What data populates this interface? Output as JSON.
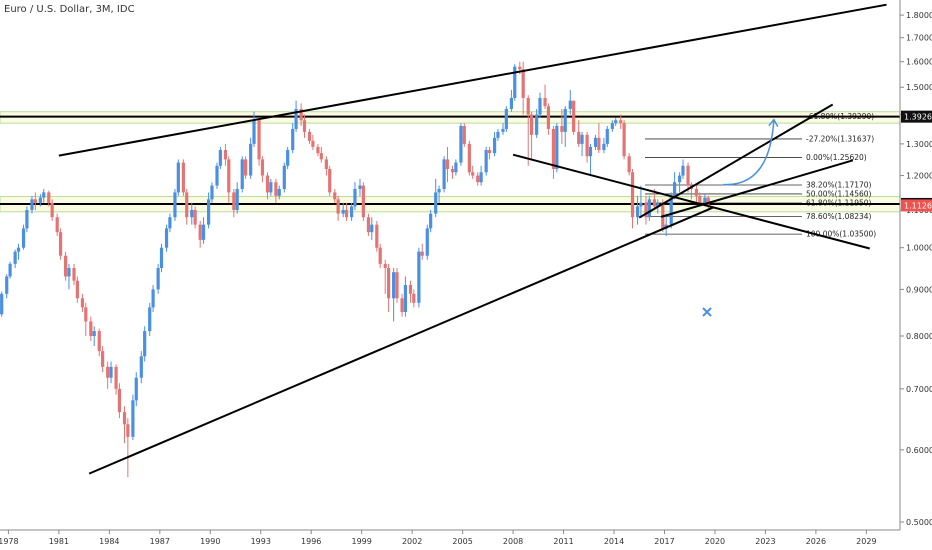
{
  "header": {
    "title": "Euro / U.S. Dollar, 3M, IDC"
  },
  "colors": {
    "up": "#4a90e2",
    "down": "#e57373",
    "zone_fill": "#fbfbe3",
    "zone_edge": "#b9dd9d",
    "key_level": "#000000",
    "arrow": "#4a90e2"
  },
  "chart_data": {
    "type": "candlestick",
    "symbol": "Euro / U.S. Dollar",
    "timeframe": "3M",
    "source": "IDC",
    "x_range": [
      1977.5,
      2031
    ],
    "y_range": [
      0.49,
      1.87
    ],
    "y_scale": "log",
    "x_ticks": [
      "1978",
      "1981",
      "1984",
      "1987",
      "1990",
      "1993",
      "1996",
      "1999",
      "2002",
      "2005",
      "2008",
      "2011",
      "2014",
      "2017",
      "2020",
      "2023",
      "2026",
      "2029"
    ],
    "y_ticks": [
      "1.80000",
      "1.70000",
      "1.60000",
      "1.50000",
      "1.40000",
      "1.30000",
      "1.20000",
      "1.10000",
      "1.00000",
      "0.90000",
      "0.80000",
      "0.70000",
      "0.60000",
      "0.50000"
    ],
    "price_tags": [
      {
        "label": "1.39260",
        "value": 1.3926,
        "style": "dark"
      },
      {
        "label": "1.11694",
        "value": 1.11694,
        "style": "dark"
      },
      {
        "label": "1.11269",
        "value": 1.11269,
        "style": "red"
      }
    ],
    "key_levels": [
      1.3926,
      1.11694
    ],
    "zones": [
      {
        "from": 1.37,
        "to": 1.41
      },
      {
        "from": 1.095,
        "to": 1.138
      }
    ],
    "fib_levels": [
      {
        "label": "-61.80%(1.39290)",
        "value": 1.3929
      },
      {
        "label": "-27.20%(1.31637)",
        "value": 1.31637
      },
      {
        "label": "0.00%(1.25620)",
        "value": 1.2562
      },
      {
        "label": "38.20%(1.17170)",
        "value": 1.1717
      },
      {
        "label": "50.00%(1.14560)",
        "value": 1.1456
      },
      {
        "label": "61.80%(1.11950)",
        "value": 1.1195
      },
      {
        "label": "78.60%(1.08234)",
        "value": 1.08234
      },
      {
        "label": "100.00%(1.03500)",
        "value": 1.035
      }
    ],
    "trendlines": [
      {
        "name": "channel-upper",
        "from": [
          1981.0,
          1.262
        ],
        "to": [
          2030.2,
          1.848
        ]
      },
      {
        "name": "channel-lower",
        "from": [
          1982.8,
          0.565
        ],
        "to": [
          2019.9,
          1.107
        ]
      },
      {
        "name": "wedge-upper",
        "from": [
          2015.5,
          1.079
        ],
        "to": [
          2027.0,
          1.436
        ]
      },
      {
        "name": "wedge-lower",
        "from": [
          2016.8,
          1.081
        ],
        "to": [
          2028.2,
          1.247
        ]
      },
      {
        "name": "downtrend",
        "from": [
          2008.0,
          1.265
        ],
        "to": [
          2029.2,
          0.998
        ]
      }
    ],
    "arrow": {
      "from": [
        2020.5,
        1.173
      ],
      "to": [
        2023.5,
        1.382
      ]
    },
    "candles": [
      [
        1977.6,
        0.845,
        0.89,
        0.84,
        0.895
      ],
      [
        1977.9,
        0.89,
        0.93,
        0.88,
        0.935
      ],
      [
        1978.1,
        0.93,
        0.96,
        0.925,
        0.965
      ],
      [
        1978.4,
        0.96,
        0.99,
        0.95,
        0.995
      ],
      [
        1978.6,
        0.99,
        1.0,
        0.97,
        1.01
      ],
      [
        1978.9,
        1.0,
        1.05,
        0.995,
        1.06
      ],
      [
        1979.1,
        1.05,
        1.1,
        1.04,
        1.11
      ],
      [
        1979.4,
        1.1,
        1.13,
        1.09,
        1.14
      ],
      [
        1979.6,
        1.13,
        1.12,
        1.1,
        1.15
      ],
      [
        1979.9,
        1.12,
        1.135,
        1.11,
        1.145
      ],
      [
        1980.1,
        1.135,
        1.15,
        1.12,
        1.16
      ],
      [
        1980.4,
        1.15,
        1.12,
        1.11,
        1.155
      ],
      [
        1980.6,
        1.12,
        1.08,
        1.07,
        1.13
      ],
      [
        1980.9,
        1.08,
        1.04,
        1.03,
        1.09
      ],
      [
        1981.1,
        1.04,
        0.98,
        0.97,
        1.05
      ],
      [
        1981.4,
        0.98,
        0.93,
        0.92,
        0.99
      ],
      [
        1981.6,
        0.93,
        0.95,
        0.9,
        0.96
      ],
      [
        1981.9,
        0.95,
        0.92,
        0.91,
        0.96
      ],
      [
        1982.1,
        0.92,
        0.88,
        0.87,
        0.93
      ],
      [
        1982.4,
        0.88,
        0.86,
        0.85,
        0.89
      ],
      [
        1982.6,
        0.86,
        0.83,
        0.8,
        0.87
      ],
      [
        1982.9,
        0.83,
        0.8,
        0.79,
        0.84
      ],
      [
        1983.1,
        0.8,
        0.81,
        0.78,
        0.82
      ],
      [
        1983.4,
        0.81,
        0.77,
        0.76,
        0.815
      ],
      [
        1983.6,
        0.77,
        0.74,
        0.73,
        0.78
      ],
      [
        1983.9,
        0.74,
        0.72,
        0.7,
        0.75
      ],
      [
        1984.1,
        0.72,
        0.74,
        0.71,
        0.75
      ],
      [
        1984.4,
        0.74,
        0.7,
        0.69,
        0.745
      ],
      [
        1984.6,
        0.7,
        0.66,
        0.65,
        0.71
      ],
      [
        1984.9,
        0.66,
        0.64,
        0.61,
        0.67
      ],
      [
        1985.1,
        0.64,
        0.62,
        0.56,
        0.65
      ],
      [
        1985.4,
        0.62,
        0.68,
        0.615,
        0.69
      ],
      [
        1985.6,
        0.68,
        0.72,
        0.67,
        0.73
      ],
      [
        1985.9,
        0.72,
        0.76,
        0.71,
        0.77
      ],
      [
        1986.1,
        0.76,
        0.81,
        0.75,
        0.82
      ],
      [
        1986.4,
        0.81,
        0.86,
        0.8,
        0.87
      ],
      [
        1986.6,
        0.86,
        0.9,
        0.85,
        0.91
      ],
      [
        1986.9,
        0.9,
        0.95,
        0.89,
        0.96
      ],
      [
        1987.1,
        0.95,
        1.0,
        0.94,
        1.01
      ],
      [
        1987.4,
        1.0,
        1.05,
        0.99,
        1.06
      ],
      [
        1987.6,
        1.05,
        1.08,
        1.04,
        1.09
      ],
      [
        1987.9,
        1.08,
        1.15,
        1.07,
        1.16
      ],
      [
        1988.1,
        1.15,
        1.24,
        1.14,
        1.25
      ],
      [
        1988.4,
        1.24,
        1.15,
        1.14,
        1.25
      ],
      [
        1988.6,
        1.15,
        1.08,
        1.06,
        1.16
      ],
      [
        1988.9,
        1.08,
        1.1,
        1.06,
        1.12
      ],
      [
        1989.1,
        1.1,
        1.06,
        1.05,
        1.11
      ],
      [
        1989.4,
        1.06,
        1.02,
        1.0,
        1.07
      ],
      [
        1989.6,
        1.02,
        1.06,
        1.01,
        1.08
      ],
      [
        1989.9,
        1.06,
        1.13,
        1.05,
        1.15
      ],
      [
        1990.1,
        1.13,
        1.17,
        1.12,
        1.18
      ],
      [
        1990.4,
        1.17,
        1.23,
        1.16,
        1.24
      ],
      [
        1990.6,
        1.23,
        1.28,
        1.22,
        1.29
      ],
      [
        1990.9,
        1.28,
        1.25,
        1.23,
        1.3
      ],
      [
        1991.1,
        1.25,
        1.15,
        1.12,
        1.26
      ],
      [
        1991.4,
        1.15,
        1.1,
        1.08,
        1.16
      ],
      [
        1991.6,
        1.1,
        1.16,
        1.09,
        1.18
      ],
      [
        1991.9,
        1.16,
        1.25,
        1.15,
        1.26
      ],
      [
        1992.1,
        1.25,
        1.2,
        1.19,
        1.26
      ],
      [
        1992.4,
        1.2,
        1.3,
        1.19,
        1.32
      ],
      [
        1992.6,
        1.3,
        1.38,
        1.29,
        1.41
      ],
      [
        1992.9,
        1.38,
        1.25,
        1.23,
        1.39
      ],
      [
        1993.1,
        1.25,
        1.2,
        1.18,
        1.26
      ],
      [
        1993.4,
        1.2,
        1.15,
        1.13,
        1.21
      ],
      [
        1993.6,
        1.15,
        1.18,
        1.14,
        1.19
      ],
      [
        1993.9,
        1.18,
        1.14,
        1.12,
        1.19
      ],
      [
        1994.1,
        1.14,
        1.16,
        1.13,
        1.17
      ],
      [
        1994.4,
        1.16,
        1.23,
        1.15,
        1.24
      ],
      [
        1994.6,
        1.23,
        1.28,
        1.22,
        1.29
      ],
      [
        1994.9,
        1.28,
        1.35,
        1.27,
        1.37
      ],
      [
        1995.1,
        1.35,
        1.42,
        1.34,
        1.45
      ],
      [
        1995.4,
        1.42,
        1.38,
        1.36,
        1.44
      ],
      [
        1995.6,
        1.38,
        1.34,
        1.32,
        1.4
      ],
      [
        1995.9,
        1.34,
        1.31,
        1.3,
        1.35
      ],
      [
        1996.1,
        1.31,
        1.29,
        1.28,
        1.33
      ],
      [
        1996.4,
        1.29,
        1.27,
        1.26,
        1.3
      ],
      [
        1996.6,
        1.27,
        1.25,
        1.24,
        1.29
      ],
      [
        1996.9,
        1.25,
        1.22,
        1.2,
        1.26
      ],
      [
        1997.1,
        1.22,
        1.15,
        1.14,
        1.23
      ],
      [
        1997.4,
        1.15,
        1.13,
        1.12,
        1.16
      ],
      [
        1997.6,
        1.13,
        1.09,
        1.07,
        1.14
      ],
      [
        1997.9,
        1.09,
        1.1,
        1.08,
        1.12
      ],
      [
        1998.1,
        1.1,
        1.08,
        1.07,
        1.12
      ],
      [
        1998.4,
        1.08,
        1.11,
        1.07,
        1.12
      ],
      [
        1998.6,
        1.11,
        1.16,
        1.1,
        1.18
      ],
      [
        1998.9,
        1.16,
        1.17,
        1.14,
        1.19
      ],
      [
        1999.1,
        1.17,
        1.08,
        1.07,
        1.18
      ],
      [
        1999.4,
        1.08,
        1.04,
        1.03,
        1.09
      ],
      [
        1999.6,
        1.04,
        1.06,
        1.02,
        1.08
      ],
      [
        1999.9,
        1.06,
        1.0,
        0.99,
        1.07
      ],
      [
        2000.1,
        1.0,
        0.96,
        0.95,
        1.01
      ],
      [
        2000.4,
        0.96,
        0.95,
        0.89,
        0.97
      ],
      [
        2000.6,
        0.95,
        0.88,
        0.85,
        0.96
      ],
      [
        2000.9,
        0.88,
        0.94,
        0.83,
        0.95
      ],
      [
        2001.1,
        0.94,
        0.88,
        0.87,
        0.95
      ],
      [
        2001.4,
        0.88,
        0.85,
        0.84,
        0.89
      ],
      [
        2001.6,
        0.85,
        0.91,
        0.84,
        0.93
      ],
      [
        2001.9,
        0.91,
        0.89,
        0.87,
        0.92
      ],
      [
        2002.1,
        0.89,
        0.87,
        0.86,
        0.9
      ],
      [
        2002.4,
        0.87,
        0.99,
        0.86,
        1.0
      ],
      [
        2002.6,
        0.99,
        0.98,
        0.97,
        1.01
      ],
      [
        2002.9,
        0.98,
        1.05,
        0.97,
        1.06
      ],
      [
        2003.1,
        1.05,
        1.09,
        1.04,
        1.1
      ],
      [
        2003.4,
        1.09,
        1.15,
        1.08,
        1.19
      ],
      [
        2003.6,
        1.15,
        1.16,
        1.12,
        1.17
      ],
      [
        2003.9,
        1.16,
        1.25,
        1.15,
        1.26
      ],
      [
        2004.1,
        1.25,
        1.22,
        1.18,
        1.29
      ],
      [
        2004.4,
        1.22,
        1.21,
        1.19,
        1.23
      ],
      [
        2004.6,
        1.21,
        1.24,
        1.2,
        1.25
      ],
      [
        2004.9,
        1.24,
        1.36,
        1.23,
        1.37
      ],
      [
        2005.1,
        1.36,
        1.3,
        1.29,
        1.37
      ],
      [
        2005.4,
        1.3,
        1.21,
        1.2,
        1.31
      ],
      [
        2005.6,
        1.21,
        1.2,
        1.19,
        1.23
      ],
      [
        2005.9,
        1.2,
        1.18,
        1.17,
        1.21
      ],
      [
        2006.1,
        1.18,
        1.21,
        1.17,
        1.23
      ],
      [
        2006.4,
        1.21,
        1.28,
        1.2,
        1.29
      ],
      [
        2006.6,
        1.28,
        1.27,
        1.25,
        1.29
      ],
      [
        2006.9,
        1.27,
        1.32,
        1.26,
        1.34
      ],
      [
        2007.1,
        1.32,
        1.34,
        1.31,
        1.35
      ],
      [
        2007.4,
        1.34,
        1.35,
        1.33,
        1.37
      ],
      [
        2007.6,
        1.35,
        1.42,
        1.34,
        1.43
      ],
      [
        2007.9,
        1.42,
        1.46,
        1.41,
        1.49
      ],
      [
        2008.1,
        1.46,
        1.58,
        1.45,
        1.59
      ],
      [
        2008.4,
        1.58,
        1.57,
        1.55,
        1.6
      ],
      [
        2008.6,
        1.57,
        1.46,
        1.4,
        1.6
      ],
      [
        2008.9,
        1.46,
        1.4,
        1.23,
        1.47
      ],
      [
        2009.1,
        1.4,
        1.33,
        1.25,
        1.41
      ],
      [
        2009.4,
        1.33,
        1.4,
        1.32,
        1.42
      ],
      [
        2009.6,
        1.4,
        1.46,
        1.39,
        1.48
      ],
      [
        2009.9,
        1.46,
        1.43,
        1.42,
        1.51
      ],
      [
        2010.1,
        1.43,
        1.35,
        1.33,
        1.44
      ],
      [
        2010.4,
        1.35,
        1.22,
        1.19,
        1.36
      ],
      [
        2010.6,
        1.22,
        1.36,
        1.21,
        1.37
      ],
      [
        2010.9,
        1.36,
        1.34,
        1.3,
        1.42
      ],
      [
        2011.1,
        1.34,
        1.42,
        1.29,
        1.43
      ],
      [
        2011.4,
        1.42,
        1.45,
        1.4,
        1.49
      ],
      [
        2011.6,
        1.45,
        1.34,
        1.33,
        1.45
      ],
      [
        2011.9,
        1.34,
        1.3,
        1.29,
        1.38
      ],
      [
        2012.1,
        1.3,
        1.33,
        1.26,
        1.34
      ],
      [
        2012.4,
        1.33,
        1.26,
        1.24,
        1.34
      ],
      [
        2012.6,
        1.26,
        1.29,
        1.2,
        1.3
      ],
      [
        2012.9,
        1.29,
        1.32,
        1.28,
        1.33
      ],
      [
        2013.1,
        1.32,
        1.28,
        1.27,
        1.37
      ],
      [
        2013.4,
        1.28,
        1.3,
        1.27,
        1.32
      ],
      [
        2013.6,
        1.3,
        1.35,
        1.29,
        1.36
      ],
      [
        2013.9,
        1.35,
        1.37,
        1.34,
        1.38
      ],
      [
        2014.1,
        1.37,
        1.38,
        1.36,
        1.39
      ],
      [
        2014.4,
        1.38,
        1.37,
        1.35,
        1.4
      ],
      [
        2014.6,
        1.37,
        1.26,
        1.25,
        1.38
      ],
      [
        2014.9,
        1.26,
        1.21,
        1.2,
        1.27
      ],
      [
        2015.1,
        1.21,
        1.08,
        1.05,
        1.22
      ],
      [
        2015.4,
        1.08,
        1.11,
        1.06,
        1.14
      ],
      [
        2015.6,
        1.11,
        1.12,
        1.08,
        1.17
      ],
      [
        2015.9,
        1.12,
        1.08,
        1.06,
        1.14
      ],
      [
        2016.1,
        1.08,
        1.13,
        1.07,
        1.14
      ],
      [
        2016.4,
        1.13,
        1.11,
        1.1,
        1.16
      ],
      [
        2016.6,
        1.11,
        1.12,
        1.09,
        1.13
      ],
      [
        2016.9,
        1.12,
        1.05,
        1.04,
        1.13
      ],
      [
        2017.1,
        1.05,
        1.06,
        1.03,
        1.09
      ],
      [
        2017.4,
        1.06,
        1.14,
        1.05,
        1.15
      ],
      [
        2017.6,
        1.14,
        1.18,
        1.13,
        1.21
      ],
      [
        2017.9,
        1.18,
        1.2,
        1.15,
        1.21
      ],
      [
        2018.1,
        1.2,
        1.23,
        1.19,
        1.25
      ],
      [
        2018.4,
        1.23,
        1.17,
        1.15,
        1.24
      ],
      [
        2018.6,
        1.17,
        1.16,
        1.13,
        1.18
      ],
      [
        2018.9,
        1.16,
        1.14,
        1.12,
        1.17
      ],
      [
        2019.1,
        1.14,
        1.12,
        1.11,
        1.15
      ],
      [
        2019.4,
        1.12,
        1.135,
        1.11,
        1.145
      ],
      [
        2019.6,
        1.135,
        1.115,
        1.1,
        1.14
      ]
    ]
  }
}
